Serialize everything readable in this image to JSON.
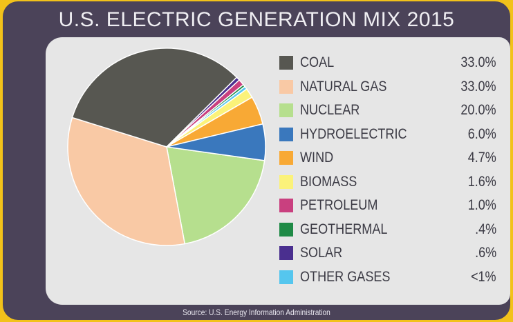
{
  "chart_data": {
    "type": "pie",
    "title": "U.S. ELECTRIC GENERATION MIX 2015",
    "source": "Source: U.S. Energy Information Administration",
    "legend_position": "right",
    "slices": [
      {
        "label": "COAL",
        "value_label": "33.0%",
        "value": 33.0,
        "color": "#575751"
      },
      {
        "label": "NATURAL GAS",
        "value_label": "33.0%",
        "value": 33.0,
        "color": "#f9c9a5"
      },
      {
        "label": "NUCLEAR",
        "value_label": "20.0%",
        "value": 20.0,
        "color": "#b6df8e"
      },
      {
        "label": "HYDROELECTRIC",
        "value_label": "6.0%",
        "value": 6.0,
        "color": "#3a78bd"
      },
      {
        "label": "WIND",
        "value_label": "4.7%",
        "value": 4.7,
        "color": "#f8a935"
      },
      {
        "label": "BIOMASS",
        "value_label": "1.6%",
        "value": 1.6,
        "color": "#fbf27a"
      },
      {
        "label": "PETROLEUM",
        "value_label": "1.0%",
        "value": 1.0,
        "color": "#c9407f"
      },
      {
        "label": "GEOTHERMAL",
        "value_label": ".4%",
        "value": 0.4,
        "color": "#1f8a46"
      },
      {
        "label": "SOLAR",
        "value_label": ".6%",
        "value": 0.6,
        "color": "#4a2f8f"
      },
      {
        "label": "OTHER GASES",
        "value_label": "<1%",
        "value": 0.5,
        "color": "#55c6ee"
      }
    ]
  }
}
